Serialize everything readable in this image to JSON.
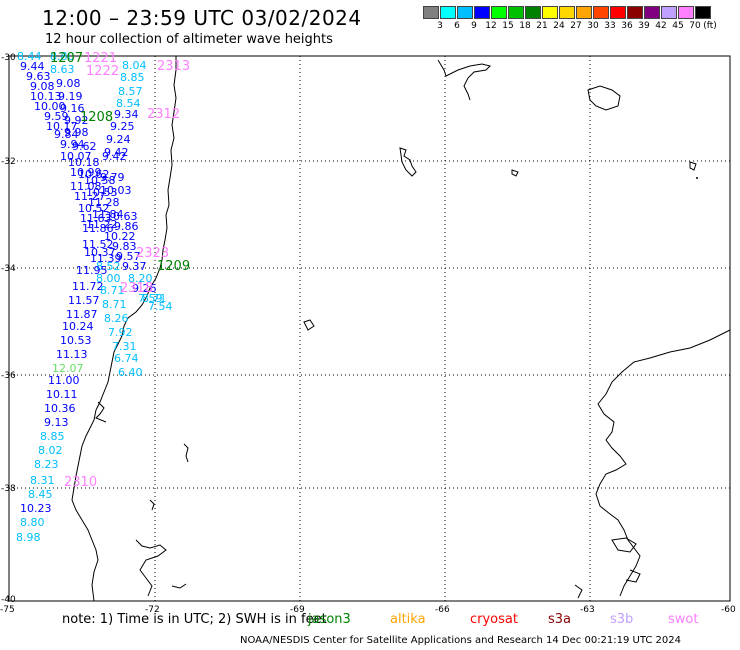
{
  "title": "12:00 – 23:59 UTC 03/02/2024",
  "subtitle": "12 hour collection of altimeter wave heights",
  "colorbar": {
    "unit": "(ft)",
    "ticks": [
      "3",
      "6",
      "9",
      "12",
      "15",
      "18",
      "21",
      "24",
      "27",
      "30",
      "33",
      "36",
      "39",
      "42",
      "45",
      "70"
    ],
    "colors": [
      "#808080",
      "#00ffff",
      "#00bfff",
      "#0000ff",
      "#00ff00",
      "#00c000",
      "#008000",
      "#ffff00",
      "#ffd700",
      "#ffa500",
      "#ff4500",
      "#ff0000",
      "#8b0000",
      "#800080",
      "#c0a0ff",
      "#ff80ff",
      "#000000"
    ]
  },
  "axes": {
    "lat_labels": [
      "-30",
      "-32",
      "-34",
      "-36",
      "-38",
      "-40"
    ],
    "lon_labels": [
      "-75",
      "-72",
      "-69",
      "-66",
      "-63",
      "-60"
    ]
  },
  "note": {
    "prefix": "note: 1) Time is in UTC; 2) SWH is in feet",
    "satellites": [
      {
        "name": "jason3",
        "color": "#008000"
      },
      {
        "name": "altika",
        "color": "#ffa500"
      },
      {
        "name": "cryosat",
        "color": "#ff0000"
      },
      {
        "name": "s3a",
        "color": "#8b0000"
      },
      {
        "name": "s3b",
        "color": "#c0a0ff"
      },
      {
        "name": "swot",
        "color": "#ff80ff"
      }
    ]
  },
  "footer": "NOAA/NESDIS Center for Satellite Applications and Research   14 Dec 00:21:19 UTC 2024",
  "time_labels": [
    {
      "text": "1207",
      "color": "#008000"
    },
    {
      "text": "1221",
      "color": "#ff80ff"
    },
    {
      "text": "1222",
      "color": "#ff80ff"
    },
    {
      "text": "2313",
      "color": "#ff80ff"
    },
    {
      "text": "1208",
      "color": "#008000"
    },
    {
      "text": "2312",
      "color": "#ff80ff"
    },
    {
      "text": "2323",
      "color": "#ff80ff"
    },
    {
      "text": "1209",
      "color": "#008000"
    },
    {
      "text": "2318",
      "color": "#ff80ff"
    },
    {
      "text": "2310",
      "color": "#ff80ff"
    }
  ],
  "wave_heights": [
    {
      "text": "8.44",
      "color": "#00bfff"
    },
    {
      "text": "8.80",
      "color": "#00bfff"
    },
    {
      "text": "9.44",
      "color": "#0000ff"
    },
    {
      "text": "8.63",
      "color": "#00bfff"
    },
    {
      "text": "9.63",
      "color": "#0000ff"
    },
    {
      "text": "9.08",
      "color": "#0000ff"
    },
    {
      "text": "9.08",
      "color": "#0000ff"
    },
    {
      "text": "10.13",
      "color": "#0000ff"
    },
    {
      "text": "9.19",
      "color": "#0000ff"
    },
    {
      "text": "10.00",
      "color": "#0000ff"
    },
    {
      "text": "9.16",
      "color": "#0000ff"
    },
    {
      "text": "9.59",
      "color": "#0000ff"
    },
    {
      "text": "9.92",
      "color": "#0000ff"
    },
    {
      "text": "10.17",
      "color": "#0000ff"
    },
    {
      "text": "9.98",
      "color": "#0000ff"
    },
    {
      "text": "9.84",
      "color": "#0000ff"
    },
    {
      "text": "9.94",
      "color": "#0000ff"
    },
    {
      "text": "9.62",
      "color": "#0000ff"
    },
    {
      "text": "10.07",
      "color": "#0000ff"
    },
    {
      "text": "10.18",
      "color": "#0000ff"
    },
    {
      "text": "10.99",
      "color": "#0000ff"
    },
    {
      "text": "10.62",
      "color": "#0000ff"
    },
    {
      "text": "11.08",
      "color": "#0000ff"
    },
    {
      "text": "10.58",
      "color": "#0000ff"
    },
    {
      "text": "11.27",
      "color": "#0000ff"
    },
    {
      "text": "10.53",
      "color": "#0000ff"
    },
    {
      "text": "10.52",
      "color": "#0000ff"
    },
    {
      "text": "11.28",
      "color": "#0000ff"
    },
    {
      "text": "11.63",
      "color": "#0000ff"
    },
    {
      "text": "11.84",
      "color": "#0000ff"
    },
    {
      "text": "11.86",
      "color": "#0000ff"
    },
    {
      "text": "11.22",
      "color": "#0000ff"
    },
    {
      "text": "10.22",
      "color": "#0000ff"
    },
    {
      "text": "11.52",
      "color": "#0000ff"
    },
    {
      "text": "9.83",
      "color": "#0000ff"
    },
    {
      "text": "10.37",
      "color": "#0000ff"
    },
    {
      "text": "11.39",
      "color": "#0000ff"
    },
    {
      "text": "9.57",
      "color": "#0000ff"
    },
    {
      "text": "8.52",
      "color": "#00bfff"
    },
    {
      "text": "9.37",
      "color": "#0000ff"
    },
    {
      "text": "11.95",
      "color": "#0000ff"
    },
    {
      "text": "8.00",
      "color": "#00bfff"
    },
    {
      "text": "8.20",
      "color": "#00bfff"
    },
    {
      "text": "11.72",
      "color": "#0000ff"
    },
    {
      "text": "7.59",
      "color": "#00bfff"
    },
    {
      "text": "8.71",
      "color": "#00bfff"
    },
    {
      "text": "9.26",
      "color": "#0000ff"
    },
    {
      "text": "7.54",
      "color": "#00bfff"
    },
    {
      "text": "11.57",
      "color": "#0000ff"
    },
    {
      "text": "8.71",
      "color": "#00bfff"
    },
    {
      "text": "11.87",
      "color": "#0000ff"
    },
    {
      "text": "8.26",
      "color": "#00bfff"
    },
    {
      "text": "10.24",
      "color": "#0000ff"
    },
    {
      "text": "7.92",
      "color": "#00bfff"
    },
    {
      "text": "10.53",
      "color": "#0000ff"
    },
    {
      "text": "7.31",
      "color": "#00bfff"
    },
    {
      "text": "11.13",
      "color": "#0000ff"
    },
    {
      "text": "6.74",
      "color": "#00bfff"
    },
    {
      "text": "12.07",
      "color": "#66dd66"
    },
    {
      "text": "6.40",
      "color": "#00bfff"
    },
    {
      "text": "11.00",
      "color": "#0000ff"
    },
    {
      "text": "10.11",
      "color": "#0000ff"
    },
    {
      "text": "10.36",
      "color": "#0000ff"
    },
    {
      "text": "9.13",
      "color": "#0000ff"
    },
    {
      "text": "8.85",
      "color": "#00bfff"
    },
    {
      "text": "8.02",
      "color": "#00bfff"
    },
    {
      "text": "8.23",
      "color": "#00bfff"
    },
    {
      "text": "8.31",
      "color": "#00bfff"
    },
    {
      "text": "8.45",
      "color": "#00bfff"
    },
    {
      "text": "10.23",
      "color": "#0000ff"
    },
    {
      "text": "8.80",
      "color": "#00bfff"
    },
    {
      "text": "8.98",
      "color": "#00bfff"
    },
    {
      "text": "8.04",
      "color": "#00bfff"
    },
    {
      "text": "8.85",
      "color": "#00bfff"
    },
    {
      "text": "8.57",
      "color": "#00bfff"
    },
    {
      "text": "8.54",
      "color": "#00bfff"
    },
    {
      "text": "9.34",
      "color": "#0000ff"
    },
    {
      "text": "9.25",
      "color": "#0000ff"
    },
    {
      "text": "9.24",
      "color": "#0000ff"
    },
    {
      "text": "9.42",
      "color": "#0000ff"
    },
    {
      "text": "9.42",
      "color": "#0000ff"
    },
    {
      "text": "9.79",
      "color": "#0000ff"
    },
    {
      "text": "10.03",
      "color": "#0000ff"
    },
    {
      "text": "10.63",
      "color": "#0000ff"
    },
    {
      "text": "9.86",
      "color": "#0000ff"
    },
    {
      "text": "8.71",
      "color": "#00bfff"
    }
  ]
}
